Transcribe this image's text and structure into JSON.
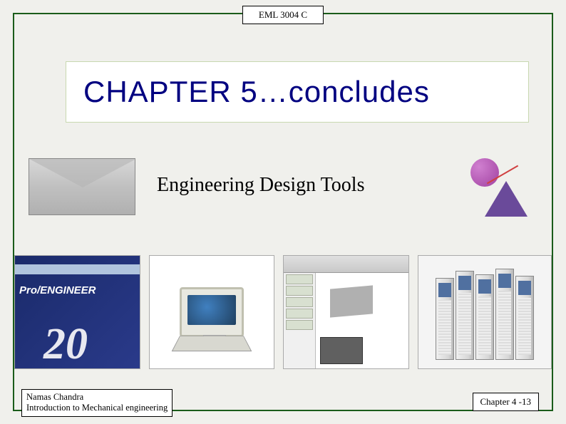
{
  "header": {
    "course_code": "EML 3004 C"
  },
  "title": {
    "text": "CHAPTER 5…concludes",
    "color": "#000080",
    "fontsize": 42,
    "background": "#ffffff",
    "border_color": "#c8d8b0"
  },
  "subtitle": {
    "text": "Engineering Design Tools",
    "fontsize": 28,
    "color": "#000000"
  },
  "images": {
    "envelope": {
      "name": "envelope-image"
    },
    "clipart": {
      "name": "engineering-clipart"
    },
    "thumbnails": [
      {
        "name": "proengineer-box",
        "label": "Pro/ENGINEER",
        "version": "20"
      },
      {
        "name": "desktop-computer"
      },
      {
        "name": "cad-screenshot"
      },
      {
        "name": "reference-books"
      }
    ]
  },
  "footer": {
    "author": "Namas Chandra",
    "course_title": "Introduction to Mechanical engineering",
    "page_ref": "Chapter 4 -13"
  },
  "frame": {
    "border_color": "#1a5c1a",
    "background": "#f0f0ec"
  }
}
